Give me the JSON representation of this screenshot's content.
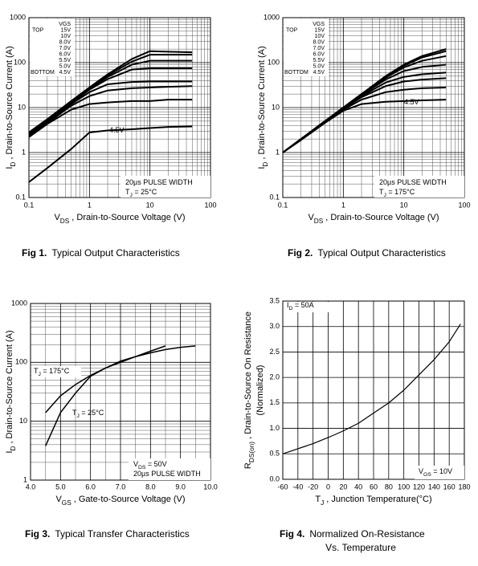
{
  "chart_data": [
    {
      "type": "line",
      "caption_label": "Fig 1.",
      "caption": "Typical Output Characteristics",
      "xlabel": [
        "V",
        "DS",
        " , Drain-to-Source Voltage (V)"
      ],
      "ylabel": [
        "I",
        "D",
        " , Drain-to-Source Current (A)"
      ],
      "xscale": "log",
      "yscale": "log",
      "grid": true,
      "minor_grid": true,
      "xlim": [
        0.1,
        100
      ],
      "ylim": [
        0.1,
        1000
      ],
      "xticks": [
        0.1,
        1,
        10,
        100
      ],
      "yticks": [
        0.1,
        1,
        10,
        100,
        1000
      ],
      "legend_title": "VGS",
      "legend_top": "TOP",
      "legend_bottom": "BOTTOM",
      "annotations": [
        [
          "4.5V"
        ],
        [
          "20µs PULSE WIDTH"
        ],
        [
          "T",
          "J",
          " = 25°C"
        ]
      ],
      "x": [
        0.1,
        0.2,
        0.5,
        1,
        2,
        5,
        10,
        20,
        50
      ],
      "series": [
        {
          "name": "15V",
          "color": "#000000",
          "values": [
            2.8,
            5.5,
            14,
            28,
            55,
            120,
            180,
            175,
            170
          ]
        },
        {
          "name": "10V",
          "color": "#000000",
          "values": [
            2.7,
            5.3,
            13.5,
            27,
            52,
            105,
            150,
            150,
            150
          ]
        },
        {
          "name": "8.0V",
          "color": "#000000",
          "values": [
            2.6,
            5.2,
            13,
            26,
            48,
            90,
            110,
            110,
            110
          ]
        },
        {
          "name": "7.0V",
          "color": "#000000",
          "values": [
            2.5,
            5,
            12.5,
            25,
            43,
            70,
            75,
            75,
            75
          ]
        },
        {
          "name": "6.0V",
          "color": "#000000",
          "values": [
            2.4,
            4.8,
            12,
            22,
            33,
            37,
            38,
            38,
            38
          ]
        },
        {
          "name": "5.5V",
          "color": "#000000",
          "values": [
            2.3,
            4.5,
            11,
            18,
            24,
            27,
            28,
            29,
            30
          ]
        },
        {
          "name": "5.0V",
          "color": "#000000",
          "values": [
            2.2,
            4.3,
            9,
            12,
            13,
            14,
            14,
            15,
            15
          ]
        },
        {
          "name": "4.5V",
          "color": "#000000",
          "values": [
            0.22,
            0.45,
            1.2,
            2.8,
            3.1,
            3.3,
            3.5,
            3.7,
            3.8
          ]
        }
      ]
    },
    {
      "type": "line",
      "caption_label": "Fig 2.",
      "caption": "Typical Output Characteristics",
      "xlabel": [
        "V",
        "DS",
        " , Drain-to-Source Voltage (V)"
      ],
      "ylabel": [
        "I",
        "D",
        " , Drain-to-Source Current (A)"
      ],
      "xscale": "log",
      "yscale": "log",
      "grid": true,
      "minor_grid": true,
      "xlim": [
        0.1,
        100
      ],
      "ylim": [
        0.1,
        1000
      ],
      "xticks": [
        0.1,
        1,
        10,
        100
      ],
      "yticks": [
        0.1,
        1,
        10,
        100,
        1000
      ],
      "legend_title": "VGS",
      "legend_top": "TOP",
      "legend_bottom": "BOTTOM",
      "annotations": [
        [
          "4.5V"
        ],
        [
          "20µs PULSE WIDTH"
        ],
        [
          "T",
          "J",
          " = 175°C"
        ]
      ],
      "x": [
        0.1,
        0.2,
        0.5,
        1,
        2,
        5,
        10,
        20,
        50
      ],
      "series": [
        {
          "name": "15V",
          "color": "#000000",
          "values": [
            1,
            2,
            5,
            10,
            20,
            50,
            90,
            140,
            200
          ]
        },
        {
          "name": "10V",
          "color": "#000000",
          "values": [
            1,
            2,
            5,
            10,
            20,
            48,
            85,
            130,
            180
          ]
        },
        {
          "name": "8.0V",
          "color": "#000000",
          "values": [
            1,
            2,
            5,
            10,
            20,
            46,
            78,
            110,
            140
          ]
        },
        {
          "name": "7.0V",
          "color": "#000000",
          "values": [
            1,
            2,
            5,
            10,
            19,
            42,
            65,
            80,
            90
          ]
        },
        {
          "name": "6.0V",
          "color": "#000000",
          "values": [
            1,
            2,
            5,
            10,
            18,
            36,
            48,
            55,
            60
          ]
        },
        {
          "name": "5.5V",
          "color": "#000000",
          "values": [
            1,
            2,
            5,
            9.5,
            17,
            30,
            38,
            42,
            45
          ]
        },
        {
          "name": "5.0V",
          "color": "#000000",
          "values": [
            1,
            2,
            4.8,
            9,
            15,
            22,
            25,
            27,
            28
          ]
        },
        {
          "name": "4.5V",
          "color": "#000000",
          "values": [
            1,
            1.9,
            4.6,
            8.5,
            12,
            13.5,
            14,
            14.5,
            15
          ]
        }
      ]
    },
    {
      "type": "line",
      "caption_label": "Fig 3.",
      "caption": "Typical Transfer Characteristics",
      "xlabel": [
        "V",
        "GS",
        " , Gate-to-Source Voltage (V)"
      ],
      "ylabel": [
        "I",
        "D",
        " , Drain-to-Source Current (A)"
      ],
      "xscale": "linear",
      "yscale": "log",
      "grid": true,
      "minor_grid": true,
      "xlim": [
        4,
        10
      ],
      "ylim": [
        1,
        1000
      ],
      "xticks": [
        {
          "value": 4,
          "label": "4.0"
        },
        {
          "value": 5,
          "label": "5.0"
        },
        {
          "value": 6,
          "label": "6.0"
        },
        {
          "value": 7,
          "label": "7.0"
        },
        {
          "value": 8,
          "label": "8.0"
        },
        {
          "value": 9,
          "label": "9.0"
        },
        {
          "value": 10,
          "label": "10.0"
        }
      ],
      "yticks": [
        1,
        10,
        100,
        1000
      ],
      "annotations": [
        [
          "T",
          "J",
          " = 175°C"
        ],
        [
          "T",
          "J",
          " = 25°C"
        ],
        [
          "V",
          "DS",
          " = 50V"
        ],
        [
          "20µs PULSE WIDTH"
        ]
      ],
      "x": [
        4.5,
        5,
        5.5,
        6,
        6.5,
        7,
        7.5,
        8,
        8.5,
        9,
        9.5
      ],
      "series": [
        {
          "color": "#000000",
          "values": [
            14,
            27,
            42,
            60,
            80,
            100,
            125,
            155,
            190,
            null,
            null
          ]
        },
        {
          "color": "#000000",
          "values": [
            3.8,
            14,
            30,
            58,
            80,
            105,
            125,
            145,
            165,
            180,
            190
          ]
        }
      ]
    },
    {
      "type": "line",
      "caption_label": "Fig 4.",
      "caption": "Normalized On-Resistance",
      "caption2": "Vs. Temperature",
      "xlabel": [
        "T",
        "J",
        " , Junction Temperature(°C)"
      ],
      "ylabel": [
        "R",
        "DS(on)",
        " , Drain-to-Source On Resistance"
      ],
      "ylabel2": "(Normalized)",
      "xscale": "linear",
      "yscale": "linear",
      "grid": true,
      "minor_grid": false,
      "xlim": [
        -60,
        180
      ],
      "ylim": [
        0,
        3.5
      ],
      "xticks": [
        -60,
        -40,
        -20,
        0,
        20,
        40,
        60,
        80,
        100,
        120,
        140,
        160,
        180
      ],
      "yticks": [
        {
          "value": 0,
          "label": "0.0"
        },
        0.5,
        {
          "value": 1,
          "label": "1.0"
        },
        1.5,
        {
          "value": 2,
          "label": "2.0"
        },
        2.5,
        {
          "value": 3,
          "label": "3.0"
        },
        3.5
      ],
      "annotations": [
        [
          "I",
          "D",
          " = 50A"
        ],
        [
          "V",
          "GS",
          " = 10V"
        ]
      ],
      "x": [
        -60,
        -40,
        -20,
        0,
        20,
        40,
        60,
        80,
        100,
        120,
        140,
        160,
        175
      ],
      "series": [
        {
          "color": "#000000",
          "values": [
            0.5,
            0.6,
            0.7,
            0.82,
            0.95,
            1.1,
            1.3,
            1.5,
            1.75,
            2.05,
            2.35,
            2.7,
            3.05
          ]
        }
      ]
    }
  ]
}
